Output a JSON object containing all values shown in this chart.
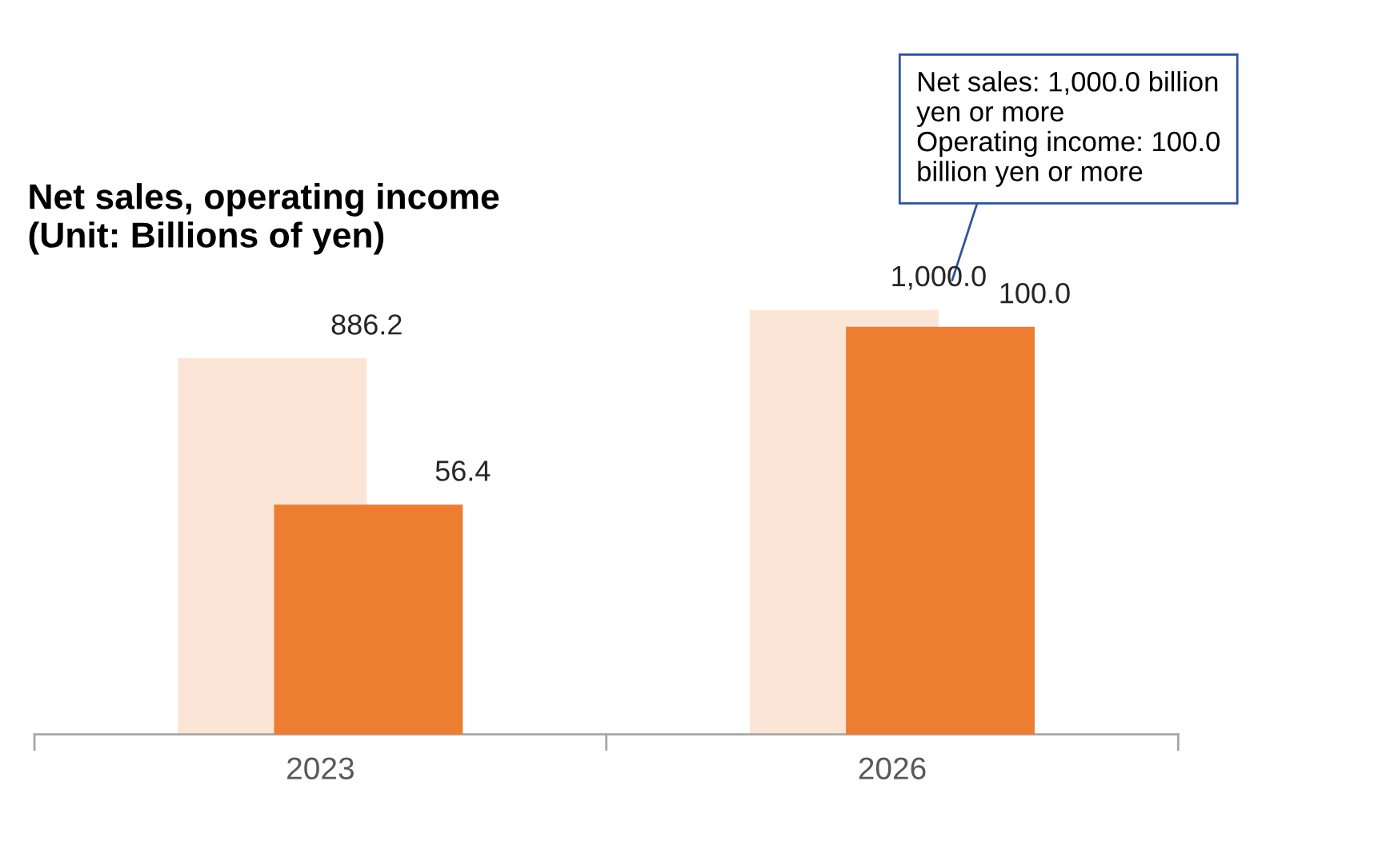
{
  "chart_data": {
    "type": "bar",
    "title": "Net sales, operating income\n(Unit: Billions of yen)",
    "categories": [
      "2023",
      "2026"
    ],
    "series": [
      {
        "color": "#fbe5d6",
        "values": [
          886.2,
          1000.0
        ],
        "value_labels": [
          "886.2",
          "1,000.0"
        ]
      },
      {
        "color": "#ed7d31",
        "values": [
          56.4,
          100.0
        ],
        "value_labels": [
          "56.4",
          "100.0"
        ],
        "axis": "y2"
      }
    ],
    "annotations": [
      "Net sales: 1,000.0 billion\nyen or more\nOperating income: 100.0\nbillion yen or more"
    ],
    "legend": false,
    "grid": false,
    "tick_labels": "x"
  }
}
